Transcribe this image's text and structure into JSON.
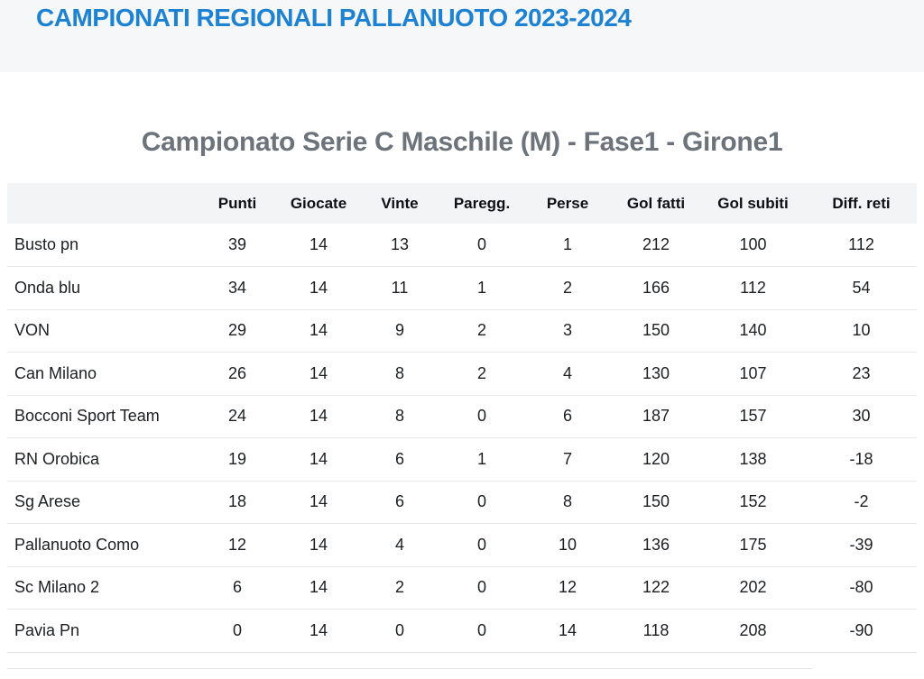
{
  "page": {
    "title_bar": "CAMPIONATI REGIONALI PALLANUOTO 2023-2024",
    "section_title": "Campionato Serie C Maschile (M) - Fase1 - Girone1"
  },
  "colors": {
    "title_blue": "#1d82d2",
    "section_gray": "#6c737a",
    "band_bg": "#f5f7f9",
    "table_header_bg": "#f2f4f6",
    "row_border": "#e7e9eb"
  },
  "standings": {
    "columns": [
      "Punti",
      "Giocate",
      "Vinte",
      "Paregg.",
      "Perse",
      "Gol fatti",
      "Gol subiti",
      "Diff. reti"
    ],
    "rows": [
      {
        "team": "Busto pn",
        "values": [
          "39",
          "14",
          "13",
          "0",
          "1",
          "212",
          "100",
          "112"
        ]
      },
      {
        "team": "Onda blu",
        "values": [
          "34",
          "14",
          "11",
          "1",
          "2",
          "166",
          "112",
          "54"
        ]
      },
      {
        "team": "VON",
        "values": [
          "29",
          "14",
          "9",
          "2",
          "3",
          "150",
          "140",
          "10"
        ]
      },
      {
        "team": "Can Milano",
        "values": [
          "26",
          "14",
          "8",
          "2",
          "4",
          "130",
          "107",
          "23"
        ]
      },
      {
        "team": "Bocconi Sport Team",
        "values": [
          "24",
          "14",
          "8",
          "0",
          "6",
          "187",
          "157",
          "30"
        ]
      },
      {
        "team": "RN Orobica",
        "values": [
          "19",
          "14",
          "6",
          "1",
          "7",
          "120",
          "138",
          "-18"
        ]
      },
      {
        "team": "Sg Arese",
        "values": [
          "18",
          "14",
          "6",
          "0",
          "8",
          "150",
          "152",
          "-2"
        ]
      },
      {
        "team": "Pallanuoto Como",
        "values": [
          "12",
          "14",
          "4",
          "0",
          "10",
          "136",
          "175",
          "-39"
        ]
      },
      {
        "team": "Sc Milano 2",
        "values": [
          "6",
          "14",
          "2",
          "0",
          "12",
          "122",
          "202",
          "-80"
        ]
      },
      {
        "team": "Pavia Pn",
        "values": [
          "0",
          "14",
          "0",
          "0",
          "14",
          "118",
          "208",
          "-90"
        ]
      }
    ]
  }
}
